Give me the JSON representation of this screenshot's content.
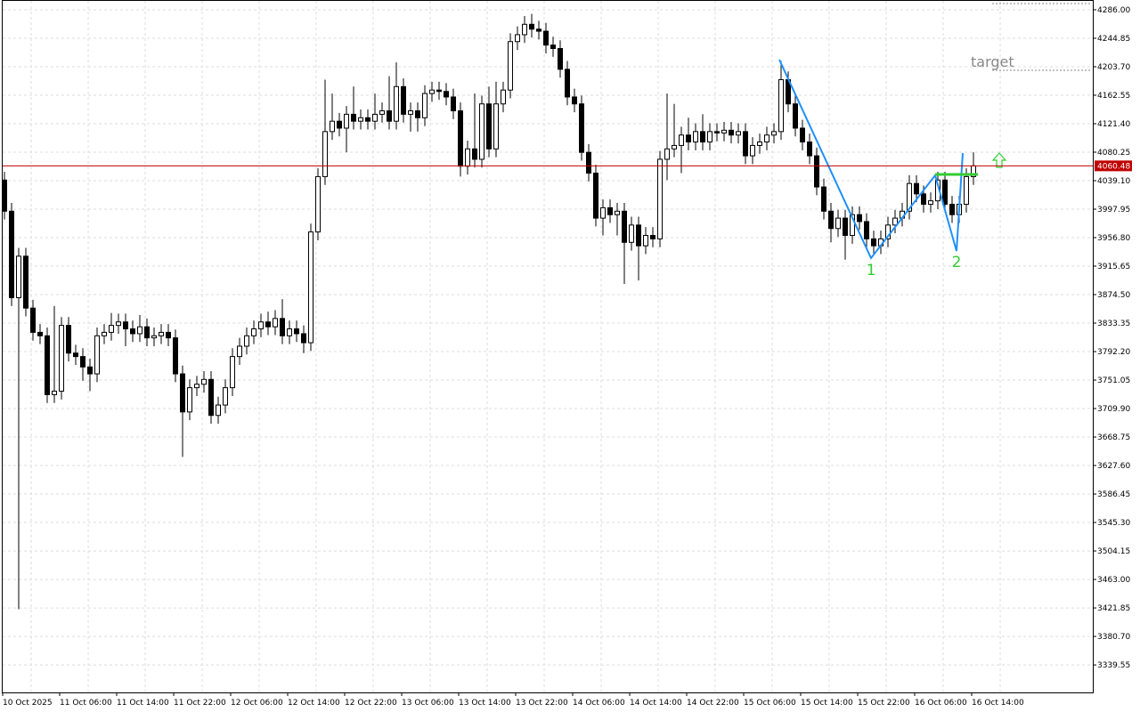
{
  "chart_data": {
    "type": "candlestick",
    "x": [
      "10 Oct 2025",
      null,
      null,
      null,
      null,
      null,
      null,
      null,
      "11 Oct 06:00",
      null,
      null,
      null,
      null,
      null,
      null,
      null,
      "11 Oct 14:00",
      null,
      null,
      null,
      null,
      null,
      null,
      null,
      "11 Oct 22:00",
      null,
      null,
      null,
      null,
      null,
      null,
      null,
      "12 Oct 06:00",
      null,
      null,
      null,
      null,
      null,
      null,
      null,
      "12 Oct 14:00",
      null,
      null,
      null,
      null,
      null,
      null,
      null,
      "12 Oct 22:00",
      null,
      null,
      null,
      null,
      null,
      null,
      null,
      "13 Oct 06:00",
      null,
      null,
      null,
      null,
      null,
      null,
      null,
      "13 Oct 14:00",
      null,
      null,
      null,
      null,
      null,
      null,
      null,
      "13 Oct 22:00",
      null,
      null,
      null,
      null,
      null,
      null,
      null,
      "14 Oct 06:00",
      null,
      null,
      null,
      null,
      null,
      null,
      null,
      "14 Oct 14:00",
      null,
      null,
      null,
      null,
      null,
      null,
      null,
      "14 Oct 22:00",
      null,
      null,
      null,
      null,
      null,
      null,
      null,
      "15 Oct 06:00",
      null,
      null,
      null,
      null,
      null,
      null,
      null,
      "15 Oct 14:00",
      null,
      null,
      null,
      null,
      null,
      null,
      null,
      "15 Oct 22:00",
      null,
      null,
      null,
      null,
      null,
      null,
      null,
      "16 Oct 06:00",
      null,
      null,
      null,
      null,
      null,
      null,
      null,
      "16 Oct 14:00"
    ],
    "open": [
      4040,
      3995,
      3870,
      3930,
      3855,
      3820,
      3815,
      3730,
      3735,
      3830,
      3790,
      3785,
      3770,
      3760,
      3815,
      3820,
      3830,
      3835,
      3825,
      3818,
      3828,
      3812,
      3815,
      3820,
      3812,
      3760,
      3705,
      3740,
      3745,
      3752,
      3700,
      3715,
      3740,
      3785,
      3800,
      3815,
      3825,
      3835,
      3828,
      3840,
      3815,
      3825,
      3818,
      3805,
      3965,
      4045,
      4110,
      4125,
      4115,
      4135,
      4125,
      4130,
      4125,
      4135,
      4140,
      4125,
      4175,
      4135,
      4140,
      4130,
      4165,
      4170,
      4168,
      4160,
      4140,
      4060,
      4085,
      4070,
      4150,
      4085,
      4150,
      4170,
      4240,
      4250,
      4265,
      4258,
      4255,
      4235,
      4230,
      4200,
      4160,
      4150,
      4080,
      4050,
      3985,
      4000,
      3990,
      3995,
      3950,
      3975,
      3945,
      3960,
      3955,
      4070,
      4085,
      4090,
      4105,
      4095,
      4110,
      4095,
      4110,
      4108,
      4112,
      4105,
      4110,
      4075,
      4090,
      4095,
      4105,
      4110,
      4185,
      4150,
      4115,
      4095,
      4075,
      4030,
      3995,
      3970,
      3985,
      3960,
      3990,
      3980,
      3955,
      3945,
      3955,
      3975,
      3985,
      3995,
      4035,
      4020,
      4005,
      4010,
      4040,
      4005,
      3990,
      4005,
      4045
    ],
    "high": [
      4052,
      4007,
      3942,
      3942,
      3867,
      3832,
      3827,
      3858,
      3842,
      3842,
      3802,
      3797,
      3782,
      3827,
      3832,
      3848,
      3847,
      3847,
      3837,
      3845,
      3840,
      3827,
      3832,
      3832,
      3824,
      3772,
      3752,
      3757,
      3764,
      3764,
      3727,
      3752,
      3797,
      3812,
      3827,
      3837,
      3847,
      3850,
      3852,
      3868,
      3837,
      3837,
      3830,
      3977,
      4057,
      4185,
      4165,
      4137,
      4147,
      4175,
      4142,
      4142,
      4165,
      4152,
      4190,
      4210,
      4187,
      4152,
      4152,
      4177,
      4182,
      4182,
      4180,
      4172,
      4152,
      4097,
      4165,
      4162,
      4175,
      4182,
      4182,
      4252,
      4262,
      4277,
      4280,
      4270,
      4267,
      4247,
      4242,
      4212,
      4172,
      4162,
      4092,
      4062,
      4012,
      4012,
      4007,
      4007,
      3987,
      3987,
      3972,
      3972,
      4082,
      4165,
      4150,
      4117,
      4130,
      4122,
      4135,
      4122,
      4122,
      4124,
      4124,
      4122,
      4122,
      4102,
      4107,
      4117,
      4122,
      4212,
      4197,
      4162,
      4127,
      4107,
      4087,
      4042,
      4007,
      3997,
      3997,
      4002,
      4002,
      3992,
      3967,
      3967,
      3987,
      3997,
      4007,
      4047,
      4047,
      4032,
      4022,
      4052,
      4052,
      4017,
      4017,
      4057,
      4080
    ],
    "low": [
      3983,
      3858,
      3420,
      3843,
      3808,
      3803,
      3718,
      3718,
      3723,
      3778,
      3773,
      3750,
      3735,
      3748,
      3803,
      3808,
      3818,
      3800,
      3806,
      3806,
      3800,
      3800,
      3803,
      3800,
      3748,
      3640,
      3693,
      3728,
      3733,
      3688,
      3688,
      3703,
      3728,
      3773,
      3788,
      3803,
      3813,
      3816,
      3816,
      3803,
      3803,
      3806,
      3790,
      3793,
      3953,
      4033,
      4098,
      4103,
      4080,
      4113,
      4113,
      4113,
      4113,
      4123,
      4113,
      4113,
      4123,
      4110,
      4110,
      4118,
      4153,
      4156,
      4148,
      4128,
      4045,
      4048,
      4058,
      4058,
      4073,
      4073,
      4138,
      4158,
      4228,
      4238,
      4246,
      4243,
      4223,
      4218,
      4188,
      4148,
      4138,
      4068,
      4038,
      3973,
      3960,
      3978,
      3960,
      3890,
      3938,
      3895,
      3933,
      3943,
      3943,
      4040,
      4073,
      4050,
      4083,
      4083,
      4083,
      4083,
      4096,
      4096,
      4093,
      4093,
      4063,
      4063,
      4078,
      4083,
      4093,
      4098,
      4138,
      4103,
      4083,
      4063,
      4018,
      3983,
      3950,
      3958,
      3925,
      3948,
      3968,
      3943,
      3933,
      3933,
      3943,
      3963,
      3973,
      3983,
      4008,
      3993,
      3993,
      3998,
      3993,
      3978,
      3978,
      3993,
      4033
    ],
    "close": [
      3995,
      3870,
      3930,
      3855,
      3820,
      3815,
      3730,
      3735,
      3830,
      3790,
      3785,
      3770,
      3760,
      3815,
      3820,
      3830,
      3835,
      3825,
      3818,
      3828,
      3812,
      3815,
      3820,
      3812,
      3760,
      3705,
      3740,
      3745,
      3752,
      3700,
      3715,
      3740,
      3785,
      3800,
      3815,
      3825,
      3835,
      3828,
      3840,
      3815,
      3825,
      3818,
      3805,
      3965,
      4045,
      4110,
      4125,
      4115,
      4135,
      4125,
      4130,
      4125,
      4135,
      4140,
      4125,
      4175,
      4135,
      4140,
      4130,
      4165,
      4170,
      4168,
      4160,
      4140,
      4060,
      4085,
      4070,
      4150,
      4085,
      4150,
      4170,
      4240,
      4250,
      4265,
      4258,
      4255,
      4235,
      4230,
      4200,
      4160,
      4150,
      4080,
      4050,
      3985,
      4000,
      3990,
      3995,
      3950,
      3975,
      3945,
      3960,
      3955,
      4070,
      4085,
      4090,
      4105,
      4095,
      4110,
      4095,
      4110,
      4108,
      4112,
      4105,
      4110,
      4075,
      4090,
      4095,
      4105,
      4110,
      4185,
      4150,
      4115,
      4095,
      4075,
      4030,
      3995,
      3970,
      3985,
      3960,
      3990,
      3980,
      3955,
      3945,
      3955,
      3975,
      3985,
      3995,
      4035,
      4020,
      4005,
      4010,
      4040,
      4005,
      3990,
      4005,
      4045,
      4060.48
    ],
    "ylim": [
      3299.8,
      4300.1
    ],
    "yticks": [
      {
        "value": 4286,
        "label": "4286.00"
      },
      4244.85,
      {
        "value": 4203.7,
        "label": "4203.70"
      },
      4162.55,
      {
        "value": 4121.4,
        "label": "4121.40"
      },
      4080.25,
      {
        "value": 4039.1,
        "label": "4039.10"
      },
      3997.95,
      {
        "value": 3956.8,
        "label": "3956.80"
      },
      3915.65,
      {
        "value": 3874.5,
        "label": "3874.50"
      },
      3833.35,
      {
        "value": 3792.2,
        "label": "3792.20"
      },
      3751.05,
      {
        "value": 3709.9,
        "label": "3709.90"
      },
      3668.75,
      {
        "value": 3627.6,
        "label": "3627.60"
      },
      3586.45,
      {
        "value": 3545.3,
        "label": "3545.30"
      },
      3504.15,
      {
        "value": 3463,
        "label": "3463.00"
      },
      3421.85,
      {
        "value": 3380.7,
        "label": "3380.70"
      },
      3339.55
    ],
    "current_price": 4060.48,
    "current_price_color": "#c00000",
    "annotations": {
      "point_1": "1",
      "point_2": "2",
      "target": "target"
    },
    "grid": true
  }
}
